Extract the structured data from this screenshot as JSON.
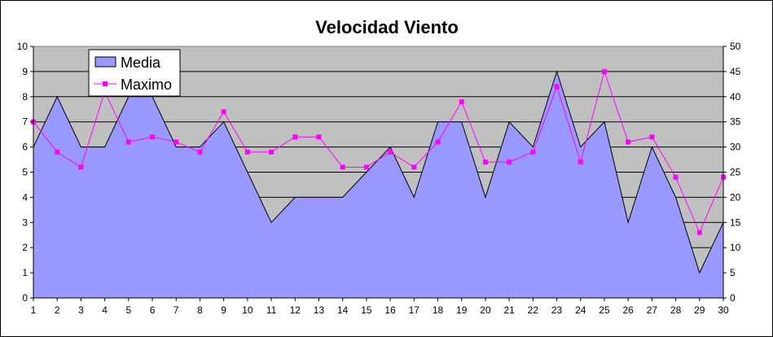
{
  "chart_data": {
    "type": "area+line",
    "title": "Velocidad Viento",
    "categories": [
      1,
      2,
      3,
      4,
      5,
      6,
      7,
      8,
      9,
      10,
      11,
      12,
      13,
      14,
      15,
      16,
      17,
      18,
      19,
      20,
      21,
      22,
      23,
      24,
      25,
      26,
      27,
      28,
      29,
      30
    ],
    "series": [
      {
        "name": "Media",
        "type": "area",
        "axis": "left",
        "color": "#9999ff",
        "values": [
          6,
          8,
          6,
          6,
          8,
          8,
          6,
          6,
          7,
          5,
          3,
          4,
          4,
          4,
          5,
          6,
          4,
          7,
          7,
          4,
          7,
          6,
          9,
          6,
          7,
          3,
          6,
          4,
          1,
          3
        ]
      },
      {
        "name": "Maximo",
        "type": "line",
        "axis": "right",
        "color": "#ff00ff",
        "values": [
          35,
          29,
          26,
          41,
          31,
          32,
          31,
          29,
          37,
          29,
          29,
          32,
          32,
          26,
          26,
          29,
          26,
          31,
          39,
          27,
          27,
          29,
          42,
          27,
          45,
          31,
          32,
          24,
          13,
          24
        ]
      }
    ],
    "y_left": {
      "min": 0,
      "max": 10,
      "step": 1
    },
    "y_right": {
      "min": 0,
      "max": 50,
      "step": 5
    },
    "grid": true,
    "plot_background": "#c0c0c0",
    "legend_position": "top-left"
  }
}
